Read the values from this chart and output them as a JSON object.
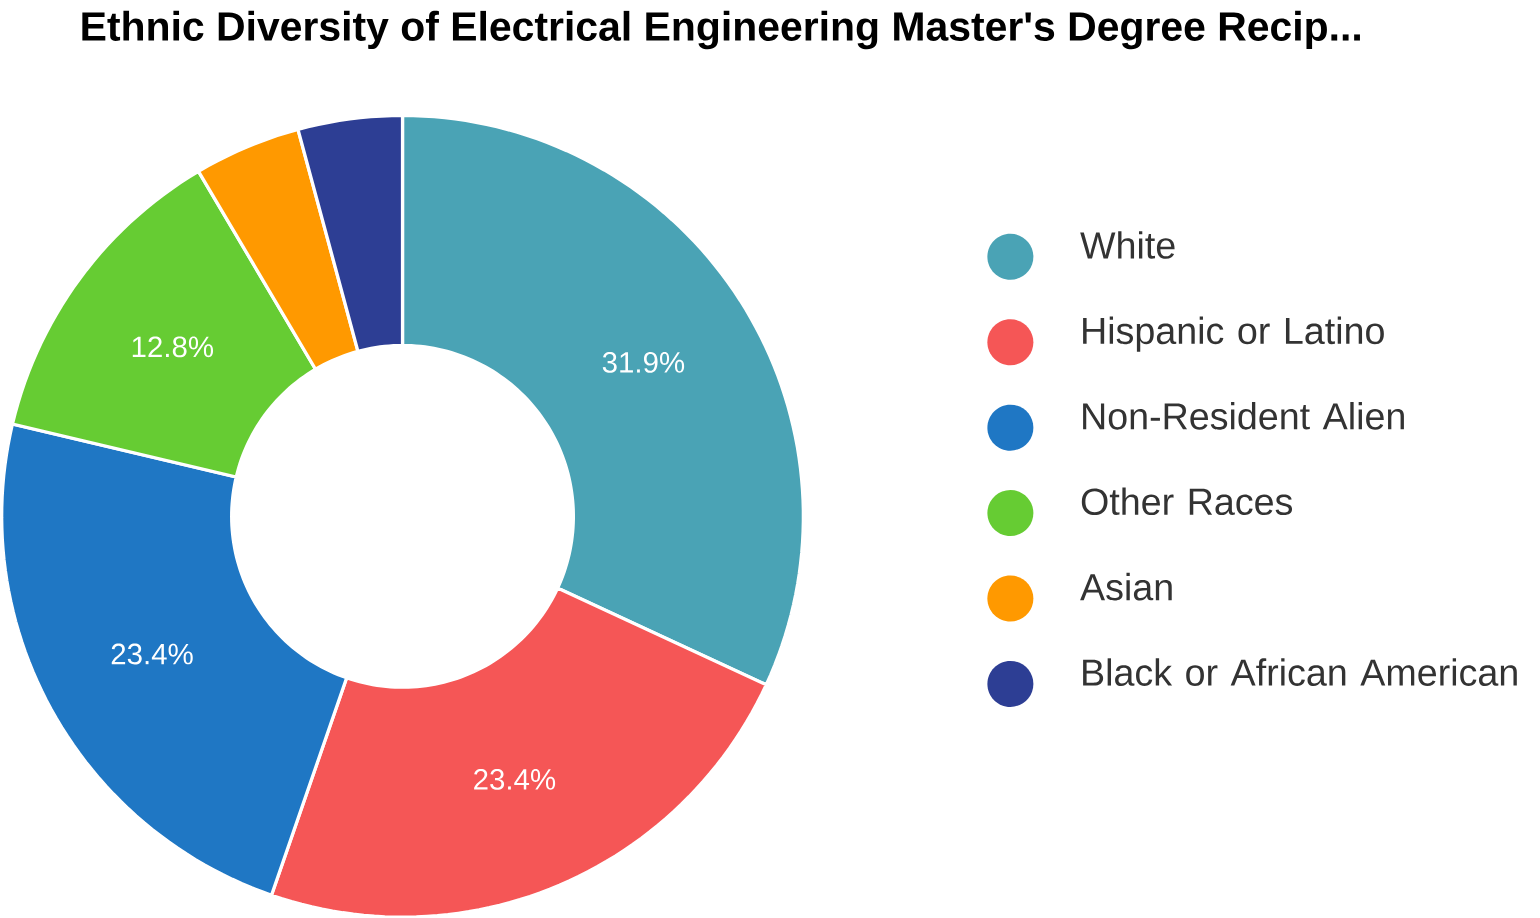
{
  "chart_data": {
    "type": "donut",
    "title": "Ethnic Diversity of Electrical Engineering Master's Degree Recip...",
    "categories": [
      "White",
      "Hispanic or Latino",
      "Non-Resident Alien",
      "Other Races",
      "Asian",
      "Black or African American"
    ],
    "values": [
      31.9,
      23.4,
      23.4,
      12.8,
      4.3,
      4.2
    ],
    "value_labels": [
      "31.9%",
      "23.4%",
      "23.4%",
      "12.8%",
      null,
      null
    ],
    "colors": [
      "#4aa3b5",
      "#f55656",
      "#1f77c4",
      "#66cc33",
      "#ff9900",
      "#2d3e94"
    ],
    "legend": "right"
  }
}
